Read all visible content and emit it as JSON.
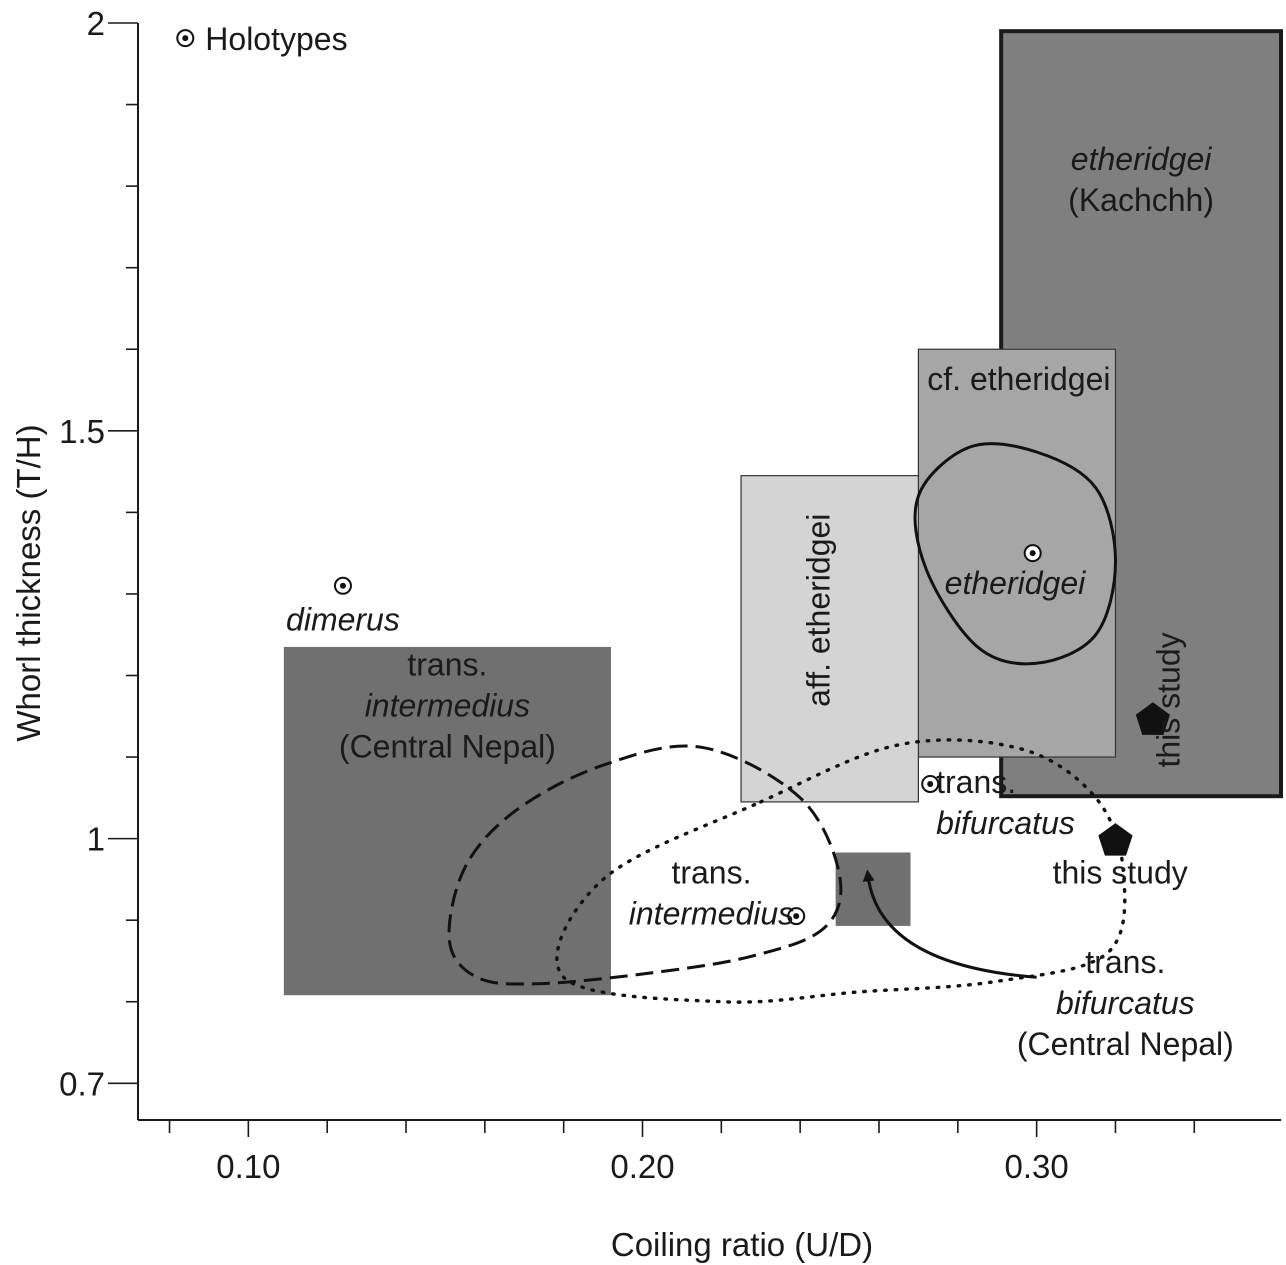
{
  "chart_data": {
    "type": "scatter",
    "xlabel": "Coiling ratio (U/D)",
    "ylabel": "Whorl thickness (T/H)",
    "xlim": [
      0.072,
      0.362
    ],
    "ylim": [
      0.655,
      2.0
    ],
    "x_ticks": [
      {
        "value": 0.1,
        "label": "0.10"
      },
      {
        "value": 0.2,
        "label": "0.20"
      },
      {
        "value": 0.3,
        "label": "0.30"
      }
    ],
    "x_minor_ticks": [
      0.08,
      0.12,
      0.14,
      0.16,
      0.18,
      0.22,
      0.24,
      0.26,
      0.28,
      0.32,
      0.34
    ],
    "y_ticks": [
      {
        "value": 2.0,
        "label": "2"
      },
      {
        "value": 1.5,
        "label": "1.5"
      },
      {
        "value": 1.0,
        "label": "1"
      },
      {
        "value": 0.7,
        "label": "0.7"
      }
    ],
    "y_minor_ticks": [
      1.9,
      1.8,
      1.7,
      1.6,
      1.4,
      1.3,
      1.2,
      1.1,
      0.9,
      0.8
    ],
    "legend": {
      "marker": "holotype",
      "label": "Holotypes",
      "x": 0.084,
      "y": 1.99
    },
    "ranges": [
      {
        "id": "etheridgei-kachchh",
        "x": [
          0.291,
          0.362
        ],
        "y": [
          1.052,
          1.99
        ],
        "fill": "#7f7f7f",
        "stroke": "#1a1a1a",
        "stroke_width": 4
      },
      {
        "id": "cf-etheridgei",
        "x": [
          0.27,
          0.32
        ],
        "y": [
          1.1,
          1.6
        ],
        "fill": "#a6a6a6",
        "stroke": "#333333",
        "stroke_width": 1.2
      },
      {
        "id": "aff-etheridgei",
        "x": [
          0.225,
          0.27
        ],
        "y": [
          1.045,
          1.445
        ],
        "fill": "#d4d4d4",
        "stroke": "#333333",
        "stroke_width": 1.2
      },
      {
        "id": "trans-intermedius-central-nepal",
        "x": [
          0.109,
          0.192
        ],
        "y": [
          0.808,
          1.235
        ],
        "fill": "#707070",
        "stroke": "none",
        "stroke_width": 0
      },
      {
        "id": "trans-bifurcatus-central-nepal",
        "x": [
          0.249,
          0.268
        ],
        "y": [
          0.893,
          0.983
        ],
        "fill": "#707070",
        "stroke": "none",
        "stroke_width": 0
      }
    ],
    "outlines": [
      {
        "id": "etheridgei-outline",
        "style": "solid",
        "points": [
          [
            0.27,
            1.42
          ],
          [
            0.283,
            1.48
          ],
          [
            0.3,
            1.474
          ],
          [
            0.315,
            1.43
          ],
          [
            0.32,
            1.34
          ],
          [
            0.315,
            1.25
          ],
          [
            0.3,
            1.215
          ],
          [
            0.285,
            1.235
          ],
          [
            0.272,
            1.33
          ]
        ]
      },
      {
        "id": "trans-intermedius-outline",
        "style": "dashed",
        "points": [
          [
            0.151,
            0.875
          ],
          [
            0.158,
            0.83
          ],
          [
            0.173,
            0.822
          ],
          [
            0.2,
            0.834
          ],
          [
            0.227,
            0.855
          ],
          [
            0.246,
            0.89
          ],
          [
            0.25,
            0.955
          ],
          [
            0.24,
            1.05
          ],
          [
            0.215,
            1.112
          ],
          [
            0.19,
            1.09
          ],
          [
            0.168,
            1.035
          ],
          [
            0.155,
            0.965
          ]
        ]
      },
      {
        "id": "trans-bifurcatus-outline",
        "style": "dotted",
        "points": [
          [
            0.23,
            1.045
          ],
          [
            0.265,
            1.115
          ],
          [
            0.296,
            1.11
          ],
          [
            0.315,
            1.05
          ],
          [
            0.322,
            0.96
          ],
          [
            0.318,
            0.86
          ],
          [
            0.29,
            0.825
          ],
          [
            0.255,
            0.812
          ],
          [
            0.22,
            0.8
          ],
          [
            0.18,
            0.83
          ],
          [
            0.19,
            0.95
          ]
        ]
      }
    ],
    "holotypes": [
      {
        "id": "dimerus",
        "x": 0.124,
        "y": 1.31
      },
      {
        "id": "etheridgei",
        "x": 0.299,
        "y": 1.35
      },
      {
        "id": "trans-bifurcatus",
        "x": 0.273,
        "y": 1.067
      },
      {
        "id": "trans-intermedius",
        "x": 0.239,
        "y": 0.905
      }
    ],
    "this_study": [
      {
        "x": 0.3295,
        "y": 1.145
      },
      {
        "x": 0.32,
        "y": 0.997
      }
    ],
    "labels": [
      {
        "id": "label-dimerus",
        "lines": [
          "dimerus"
        ],
        "italic": [
          true
        ],
        "x": 0.124,
        "y": 1.255,
        "anchor": "middle",
        "rotate": 0
      },
      {
        "id": "label-trans-intermedius-cn",
        "lines": [
          "trans.",
          "intermedius",
          "(Central Nepal)"
        ],
        "italic": [
          false,
          true,
          false
        ],
        "x": 0.1505,
        "y": 1.2,
        "anchor": "middle",
        "rotate": 0
      },
      {
        "id": "label-etheridgei-kachchh",
        "lines": [
          "etheridgei",
          "(Kachchh)"
        ],
        "italic": [
          true,
          false
        ],
        "x": 0.3265,
        "y": 1.82,
        "anchor": "middle",
        "rotate": 0
      },
      {
        "id": "label-cf-etheridgei",
        "lines": [
          "cf.  etheridgei"
        ],
        "italic": [
          false
        ],
        "x": 0.2955,
        "y": 1.55,
        "anchor": "middle",
        "rotate": 0
      },
      {
        "id": "label-etheridgei",
        "lines": [
          "etheridgei"
        ],
        "italic": [
          true
        ],
        "x": 0.2945,
        "y": 1.3,
        "anchor": "middle",
        "rotate": 0
      },
      {
        "id": "label-aff-etheridgei",
        "lines": [
          "aff. etheridgei"
        ],
        "italic": [
          false
        ],
        "x": 0.2475,
        "y": 1.28,
        "anchor": "middle",
        "rotate": -90
      },
      {
        "id": "label-this-study-rotated",
        "lines": [
          "this study"
        ],
        "italic": [
          false
        ],
        "x": 0.3362,
        "y": 1.17,
        "anchor": "middle",
        "rotate": -90
      },
      {
        "id": "label-trans-bifurcatus",
        "lines": [
          "trans.",
          "bifurcatus"
        ],
        "italic": [
          false,
          true
        ],
        "x": 0.2745,
        "y": 1.056,
        "anchor": "start",
        "rotate": 0
      },
      {
        "id": "label-this-study",
        "lines": [
          "this study"
        ],
        "italic": [
          false
        ],
        "x": 0.3212,
        "y": 0.945,
        "anchor": "middle",
        "rotate": 0
      },
      {
        "id": "label-trans-intermedius",
        "lines": [
          "trans.",
          "intermedius"
        ],
        "italic": [
          false,
          true
        ],
        "x": 0.2175,
        "y": 0.945,
        "anchor": "middle",
        "rotate": 0
      },
      {
        "id": "label-trans-bifurcatus-cn",
        "lines": [
          "trans.",
          "bifurcatus",
          "(Central Nepal)"
        ],
        "italic": [
          false,
          true,
          false
        ],
        "x": 0.3225,
        "y": 0.835,
        "anchor": "middle",
        "rotate": 0
      }
    ],
    "annotation_arrow": {
      "from": [
        0.3,
        0.83
      ],
      "control": [
        0.26,
        0.845
      ],
      "to": [
        0.2572,
        0.955
      ]
    },
    "grid": false
  }
}
